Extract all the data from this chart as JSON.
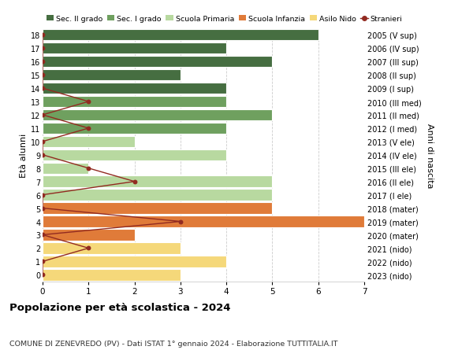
{
  "ages": [
    18,
    17,
    16,
    15,
    14,
    13,
    12,
    11,
    10,
    9,
    8,
    7,
    6,
    5,
    4,
    3,
    2,
    1,
    0
  ],
  "labels_right": [
    "2005 (V sup)",
    "2006 (IV sup)",
    "2007 (III sup)",
    "2008 (II sup)",
    "2009 (I sup)",
    "2010 (III med)",
    "2011 (II med)",
    "2012 (I med)",
    "2013 (V ele)",
    "2014 (IV ele)",
    "2015 (III ele)",
    "2016 (II ele)",
    "2017 (I ele)",
    "2018 (mater)",
    "2019 (mater)",
    "2020 (mater)",
    "2021 (nido)",
    "2022 (nido)",
    "2023 (nido)"
  ],
  "bar_values": [
    6,
    4,
    5,
    3,
    4,
    4,
    5,
    4,
    2,
    4,
    1,
    5,
    5,
    5,
    7,
    2,
    3,
    4,
    3
  ],
  "stranieri_values": [
    0,
    0,
    0,
    0,
    0,
    1,
    0,
    1,
    0,
    0,
    1,
    2,
    0,
    0,
    3,
    0,
    1,
    0,
    0
  ],
  "bar_colors": [
    "#466e41",
    "#466e41",
    "#466e41",
    "#466e41",
    "#466e41",
    "#6fa05f",
    "#6fa05f",
    "#6fa05f",
    "#b8d9a0",
    "#b8d9a0",
    "#b8d9a0",
    "#b8d9a0",
    "#b8d9a0",
    "#e07b39",
    "#e07b39",
    "#e07b39",
    "#f5d87a",
    "#f5d87a",
    "#f5d87a"
  ],
  "legend_labels": [
    "Sec. II grado",
    "Sec. I grado",
    "Scuola Primaria",
    "Scuola Infanzia",
    "Asilo Nido",
    "Stranieri"
  ],
  "legend_colors": [
    "#466e41",
    "#6fa05f",
    "#b8d9a0",
    "#e07b39",
    "#f5d87a",
    "#922b21"
  ],
  "stranieri_color": "#922b21",
  "title": "Popolazione per età scolastica - 2024",
  "subtitle": "COMUNE DI ZENEVREDO (PV) - Dati ISTAT 1° gennaio 2024 - Elaborazione TUTTITALIA.IT",
  "ylabel_left": "Età alunni",
  "ylabel_right": "Anni di nascita",
  "xlim": [
    0,
    7
  ],
  "background_color": "#ffffff",
  "grid_color": "#cccccc",
  "bar_edge_color": "#ffffff"
}
